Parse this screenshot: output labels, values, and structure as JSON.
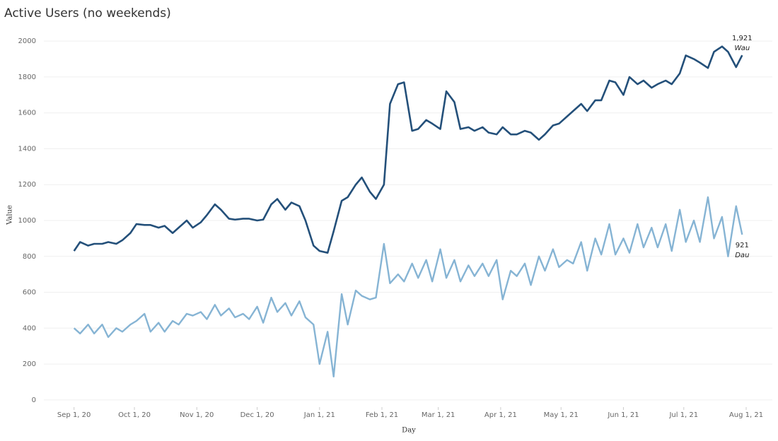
{
  "chart_data": {
    "type": "line",
    "title": "Active Users (no weekends)",
    "x_label": "Day",
    "y_label": "Value",
    "grid": true,
    "xlim": [
      "2020-08-17",
      "2021-08-14"
    ],
    "xticks": [
      {
        "value": "2020-09-01",
        "label": "Sep 1, 20"
      },
      {
        "value": "2020-10-01",
        "label": "Oct 1, 20"
      },
      {
        "value": "2020-11-01",
        "label": "Nov 1, 20"
      },
      {
        "value": "2020-12-01",
        "label": "Dec 1, 20"
      },
      {
        "value": "2021-01-01",
        "label": "Jan 1, 21"
      },
      {
        "value": "2021-02-01",
        "label": "Feb 1, 21"
      },
      {
        "value": "2021-03-01",
        "label": "Mar 1, 21"
      },
      {
        "value": "2021-04-01",
        "label": "Apr 1, 21"
      },
      {
        "value": "2021-05-01",
        "label": "May 1, 21"
      },
      {
        "value": "2021-06-01",
        "label": "Jun 1, 21"
      },
      {
        "value": "2021-07-01",
        "label": "Jul 1, 21"
      },
      {
        "value": "2021-08-01",
        "label": "Aug 1, 21"
      }
    ],
    "ylim": [
      -40,
      2040
    ],
    "yticks": [
      0,
      200,
      400,
      600,
      800,
      1000,
      1200,
      1400,
      1600,
      1800,
      2000
    ],
    "x": [
      "2020-09-01",
      "2020-09-04",
      "2020-09-08",
      "2020-09-11",
      "2020-09-15",
      "2020-09-18",
      "2020-09-22",
      "2020-09-25",
      "2020-09-29",
      "2020-10-02",
      "2020-10-06",
      "2020-10-09",
      "2020-10-13",
      "2020-10-16",
      "2020-10-20",
      "2020-10-23",
      "2020-10-27",
      "2020-10-30",
      "2020-11-03",
      "2020-11-06",
      "2020-11-10",
      "2020-11-13",
      "2020-11-17",
      "2020-11-20",
      "2020-11-24",
      "2020-11-27",
      "2020-12-01",
      "2020-12-04",
      "2020-12-08",
      "2020-12-11",
      "2020-12-15",
      "2020-12-18",
      "2020-12-22",
      "2020-12-25",
      "2020-12-29",
      "2021-01-01",
      "2021-01-05",
      "2021-01-08",
      "2021-01-12",
      "2021-01-15",
      "2021-01-19",
      "2021-01-22",
      "2021-01-26",
      "2021-01-29",
      "2021-02-02",
      "2021-02-05",
      "2021-02-09",
      "2021-02-12",
      "2021-02-16",
      "2021-02-19",
      "2021-02-23",
      "2021-02-26",
      "2021-03-02",
      "2021-03-05",
      "2021-03-09",
      "2021-03-12",
      "2021-03-16",
      "2021-03-19",
      "2021-03-23",
      "2021-03-26",
      "2021-03-30",
      "2021-04-02",
      "2021-04-06",
      "2021-04-09",
      "2021-04-13",
      "2021-04-16",
      "2021-04-20",
      "2021-04-23",
      "2021-04-27",
      "2021-04-30",
      "2021-05-04",
      "2021-05-07",
      "2021-05-11",
      "2021-05-14",
      "2021-05-18",
      "2021-05-21",
      "2021-05-25",
      "2021-05-28",
      "2021-06-01",
      "2021-06-04",
      "2021-06-08",
      "2021-06-11",
      "2021-06-15",
      "2021-06-18",
      "2021-06-22",
      "2021-06-25",
      "2021-06-29",
      "2021-07-02",
      "2021-07-06",
      "2021-07-09",
      "2021-07-13",
      "2021-07-16",
      "2021-07-20",
      "2021-07-23",
      "2021-07-27",
      "2021-07-30"
    ],
    "series": [
      {
        "name": "Wau",
        "color": "#24507a",
        "values": [
          830,
          880,
          860,
          870,
          870,
          880,
          870,
          890,
          930,
          980,
          975,
          975,
          960,
          970,
          930,
          960,
          1000,
          960,
          990,
          1030,
          1090,
          1060,
          1010,
          1005,
          1010,
          1010,
          1000,
          1005,
          1090,
          1120,
          1060,
          1100,
          1080,
          1000,
          860,
          830,
          820,
          940,
          1110,
          1130,
          1200,
          1240,
          1160,
          1120,
          1200,
          1650,
          1760,
          1770,
          1500,
          1510,
          1560,
          1540,
          1510,
          1720,
          1660,
          1510,
          1520,
          1500,
          1520,
          1490,
          1480,
          1520,
          1480,
          1480,
          1500,
          1490,
          1450,
          1480,
          1530,
          1540,
          1580,
          1610,
          1650,
          1610,
          1670,
          1670,
          1780,
          1770,
          1700,
          1800,
          1760,
          1780,
          1740,
          1760,
          1780,
          1760,
          1820,
          1920,
          1900,
          1880,
          1850,
          1940,
          1970,
          1940,
          1855,
          1921
        ],
        "value_labels": [
          null,
          null,
          null,
          null,
          null,
          null,
          null,
          null,
          null,
          null,
          null,
          null,
          null,
          null,
          null,
          null,
          null,
          null,
          null,
          null,
          null,
          null,
          null,
          null,
          null,
          null,
          null,
          null,
          null,
          null,
          null,
          null,
          null,
          null,
          null,
          null,
          null,
          null,
          null,
          null,
          null,
          null,
          null,
          null,
          null,
          null,
          null,
          null,
          null,
          null,
          null,
          null,
          null,
          null,
          null,
          null,
          null,
          null,
          null,
          null,
          null,
          null,
          null,
          null,
          null,
          null,
          null,
          null,
          null,
          null,
          null,
          null,
          null,
          null,
          null,
          null,
          null,
          null,
          null,
          null,
          null,
          null,
          null,
          null,
          null,
          null,
          null,
          null,
          null,
          null,
          null,
          null,
          null,
          null,
          null,
          "1,921"
        ]
      },
      {
        "name": "Dau",
        "color": "#86b4d4",
        "values": [
          400,
          370,
          420,
          370,
          420,
          350,
          400,
          380,
          420,
          440,
          480,
          380,
          430,
          380,
          440,
          420,
          480,
          470,
          490,
          450,
          530,
          470,
          510,
          460,
          480,
          450,
          520,
          430,
          570,
          490,
          540,
          470,
          550,
          460,
          420,
          200,
          380,
          130,
          590,
          420,
          610,
          580,
          560,
          570,
          870,
          650,
          700,
          660,
          760,
          680,
          780,
          660,
          840,
          680,
          780,
          660,
          750,
          690,
          760,
          690,
          780,
          560,
          720,
          690,
          760,
          640,
          800,
          720,
          840,
          740,
          780,
          760,
          880,
          720,
          900,
          810,
          980,
          810,
          900,
          820,
          980,
          850,
          960,
          850,
          980,
          830,
          1060,
          880,
          1000,
          880,
          1130,
          900,
          1020,
          800,
          1080,
          921
        ]
      }
    ]
  }
}
